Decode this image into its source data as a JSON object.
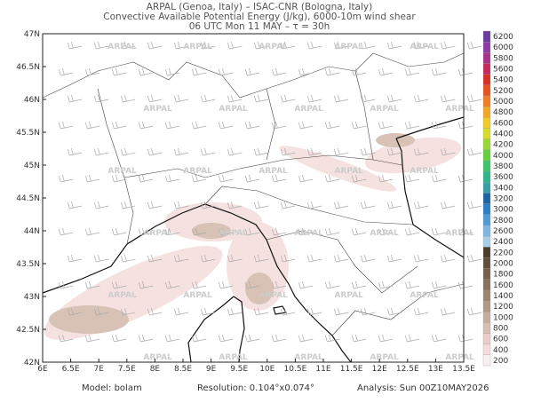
{
  "header": {
    "lines": [
      "ARPAL (Genoa, Italy)  –  ISAC-CNR (Bologna, Italy)",
      "Convective Available Potential Energy (J/kg), 6000-10m wind shear",
      "06 UTC Mon 11 MAY  –  τ = 30h"
    ]
  },
  "map": {
    "lon_labels": [
      "6E",
      "6.5E",
      "7E",
      "7.5E",
      "8E",
      "8.5E",
      "9E",
      "9.5E",
      "10E",
      "10.5E",
      "11E",
      "11.5E",
      "12E",
      "12.5E",
      "13E",
      "13.5E"
    ],
    "lat_labels": [
      "42N",
      "42.5N",
      "43N",
      "43.5N",
      "44N",
      "44.5N",
      "45N",
      "45.5N",
      "46N",
      "46.5N",
      "47N"
    ],
    "watermark": "ARPAL"
  },
  "colorbar": {
    "labels": [
      200,
      400,
      600,
      800,
      1000,
      1200,
      1400,
      1600,
      1800,
      2000,
      2200,
      2400,
      2600,
      2800,
      3000,
      3200,
      3400,
      3600,
      3800,
      4000,
      4200,
      4400,
      4600,
      4800,
      5000,
      5200,
      5400,
      5600,
      5800,
      6000,
      6200
    ],
    "colors": [
      "#f6f0f0",
      "#f7dcdc",
      "#e9cbc8",
      "#d6beb4",
      "#c4ad9f",
      "#b09986",
      "#9c8570",
      "#87725e",
      "#74604c",
      "#604e3c",
      "#4a3d2e",
      "#a7cde8",
      "#7db6e0",
      "#4f9bd6",
      "#2a7fc8",
      "#1e62a8",
      "#36a0a6",
      "#2fb58c",
      "#3cc46a",
      "#66cf40",
      "#9bd734",
      "#d4dd2c",
      "#f0cc28",
      "#f2a726",
      "#ee7f24",
      "#e75424",
      "#d83028",
      "#c42a5a",
      "#a8318a",
      "#8c3aa6",
      "#6e3c9e"
    ]
  },
  "footer": {
    "model": "Model: bolam",
    "resolution": "Resolution: 0.104°x0.074°",
    "analysis": "Analysis: Sun 00Z10MAY2026"
  }
}
